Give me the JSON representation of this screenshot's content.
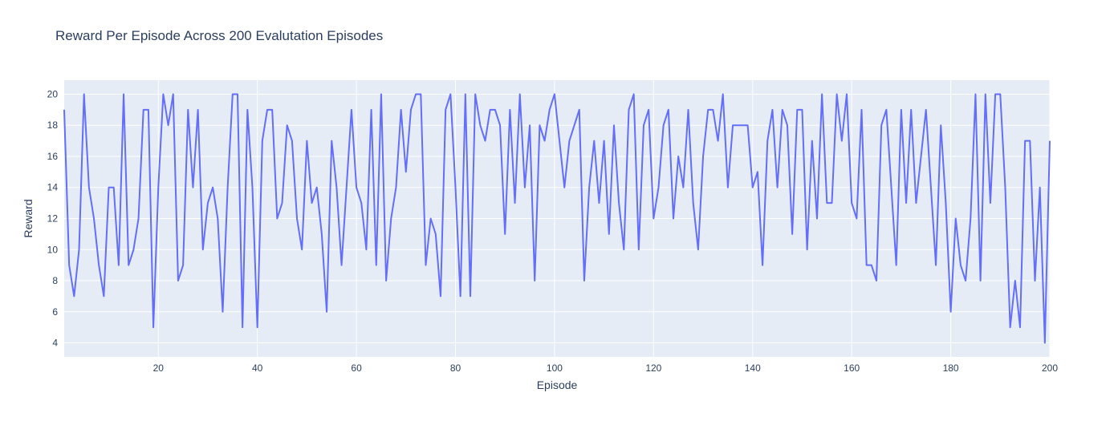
{
  "chart_data": {
    "type": "line",
    "title": "Reward Per Episode Across 200 Evalutation Episodes",
    "xlabel": "Episode",
    "ylabel": "Reward",
    "xlim": [
      1,
      200
    ],
    "ylim": [
      3.1,
      20.9
    ],
    "x_ticks": [
      20,
      40,
      60,
      80,
      100,
      120,
      140,
      160,
      180,
      200
    ],
    "y_ticks": [
      4,
      6,
      8,
      10,
      12,
      14,
      16,
      18,
      20
    ],
    "grid": true,
    "legend": "none",
    "line_color": "#636efa",
    "plot_bg": "#e5ecf6",
    "series": [
      {
        "x_start": 1,
        "values": [
          19,
          9,
          7,
          10,
          20,
          14,
          12,
          9,
          7,
          14,
          14,
          9,
          20,
          9,
          10,
          12,
          19,
          19,
          5,
          14,
          20,
          18,
          20,
          8,
          9,
          19,
          14,
          19,
          10,
          13,
          14,
          12,
          6,
          14,
          20,
          20,
          5,
          19,
          14,
          5,
          17,
          19,
          19,
          12,
          13,
          18,
          17,
          12,
          10,
          17,
          13,
          14,
          11,
          6,
          17,
          14,
          9,
          14,
          19,
          14,
          13,
          10,
          19,
          9,
          20,
          8,
          12,
          14,
          19,
          15,
          19,
          20,
          20,
          9,
          12,
          11,
          7,
          19,
          20,
          14,
          7,
          20,
          7,
          20,
          18,
          17,
          19,
          19,
          18,
          11,
          19,
          13,
          20,
          14,
          18,
          8,
          18,
          17,
          19,
          20,
          17,
          14,
          17,
          18,
          19,
          8,
          14,
          17,
          13,
          17,
          11,
          18,
          13,
          10,
          19,
          20,
          10,
          18,
          19,
          12,
          14,
          18,
          19,
          12,
          16,
          14,
          19,
          13,
          10,
          16,
          19,
          19,
          17,
          20,
          14,
          18,
          18,
          18,
          18,
          14,
          15,
          9,
          17,
          19,
          14,
          19,
          18,
          11,
          19,
          19,
          10,
          17,
          12,
          20,
          13,
          13,
          20,
          17,
          20,
          13,
          12,
          19,
          9,
          9,
          8,
          18,
          19,
          14,
          9,
          19,
          13,
          19,
          13,
          16,
          19,
          14,
          9,
          18,
          13,
          6,
          12,
          9,
          8,
          12,
          20,
          8,
          20,
          13,
          20,
          20,
          14,
          5,
          8,
          5,
          17,
          17,
          8,
          14,
          4,
          17
        ]
      }
    ]
  }
}
